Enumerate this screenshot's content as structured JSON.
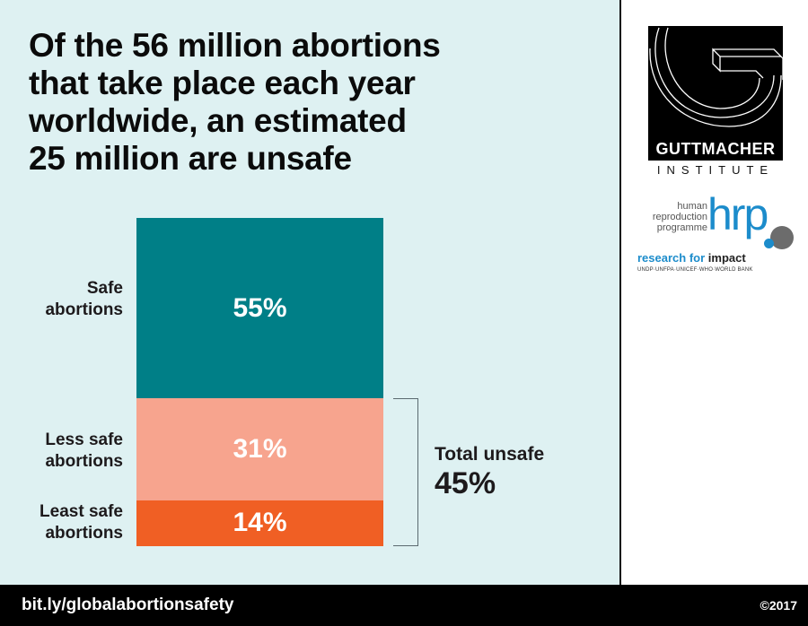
{
  "title_lines": [
    "Of the 56 million abortions",
    "that take place each year",
    "worldwide, an estimated",
    "25 million are unsafe"
  ],
  "chart_data": {
    "type": "bar",
    "stacked": true,
    "title": "Of the 56 million abortions that take place each year worldwide, an estimated 25 million are unsafe",
    "categories": [
      "Safe abortions",
      "Less safe abortions",
      "Least safe abortions"
    ],
    "values": [
      55,
      31,
      14
    ],
    "unit": "%",
    "data_labels": [
      "55%",
      "31%",
      "14%"
    ],
    "colors": [
      "#007f87",
      "#f7a48e",
      "#f05f24"
    ],
    "annotation": {
      "label": "Total unsafe",
      "value": "45%",
      "spans": [
        "Less safe abortions",
        "Least safe abortions"
      ]
    },
    "xlabel": "",
    "ylabel": "",
    "ylim": [
      0,
      100
    ]
  },
  "labels": [
    [
      "Safe",
      "abortions"
    ],
    [
      "Less safe",
      "abortions"
    ],
    [
      "Least safe",
      "abortions"
    ]
  ],
  "total_unsafe": {
    "label": "Total unsafe",
    "value": "45%"
  },
  "logos": {
    "guttmacher": {
      "name": "GUTTMACHER",
      "sub": "INSTITUTE"
    },
    "hrp": {
      "small": [
        "human",
        "reproduction",
        "programme"
      ],
      "big": "hrp",
      "research": "research for",
      "impact": "impact",
      "partners": "UNDP·UNFPA·UNICEF·WHO·WORLD BANK"
    }
  },
  "footer": {
    "url": "bit.ly/globalabortionsafety",
    "copyright": "©2017"
  }
}
